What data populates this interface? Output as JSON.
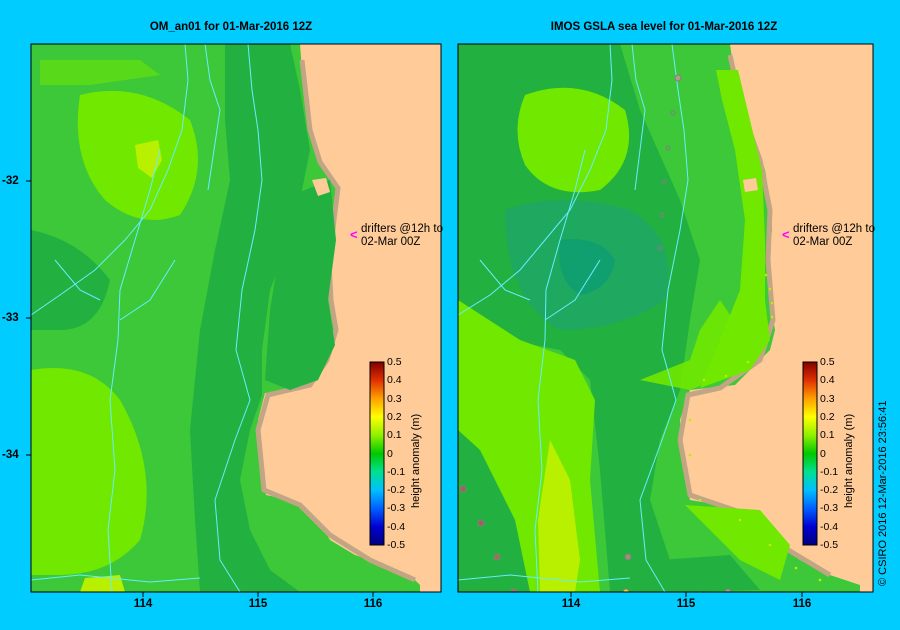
{
  "panels": [
    {
      "title": "OM_an01  for 01-Mar-2016 12Z"
    },
    {
      "title": "IMOS GSLA sea level  for 01-Mar-2016 12Z"
    }
  ],
  "axes": {
    "lat_ticks": [
      "-32",
      "-33",
      "-34"
    ],
    "lon_ticks": [
      "114",
      "115",
      "116"
    ]
  },
  "annotation": {
    "line1": "drifters @12h to",
    "line2": "02-Mar 00Z"
  },
  "colorbar": {
    "label": "height anomaly (m)",
    "ticks": [
      "0.5",
      "0.4",
      "0.3",
      "0.2",
      "0.1",
      "0",
      "-0.1",
      "-0.2",
      "-0.3",
      "-0.4",
      "-0.5"
    ]
  },
  "credit": "© CSIRO 2016   12-Mar-2016 23:56:41",
  "colors": {
    "background": "#00ccff",
    "land": "#ffcc99",
    "shelf": "#c2a585",
    "sea_dark": "#22b040",
    "sea_mid": "#3cc838",
    "sea_light": "#70e800",
    "sea_yellow": "#b8f000",
    "drifter_track": "#66eeff",
    "drifter_arrow": "#ff00ff"
  }
}
